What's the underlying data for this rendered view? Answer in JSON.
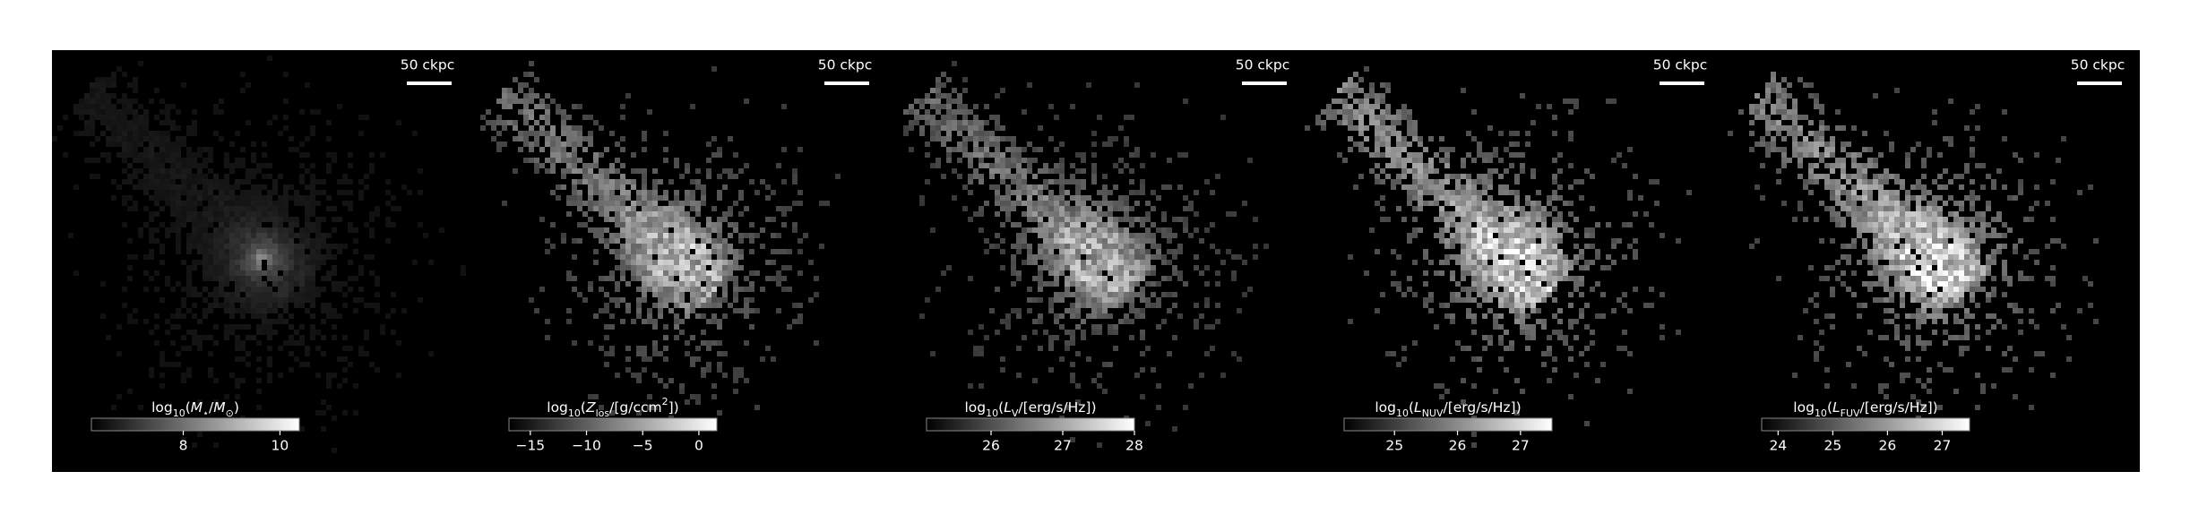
{
  "chart_data": [
    {
      "type": "image",
      "scalebar": "50 ckpc",
      "colorbar": {
        "label": [
          "log",
          {
            "t": "10",
            "s": "sub"
          },
          "(",
          {
            "t": "M",
            "s": "it"
          },
          {
            "t": "⋆",
            "s": "sub"
          },
          "/",
          {
            "t": "M",
            "s": "it"
          },
          {
            "t": "⊙",
            "s": "sub"
          },
          ")"
        ],
        "clim": [
          6.1,
          10.4
        ],
        "ticks": [
          8,
          10
        ]
      }
    },
    {
      "type": "image",
      "scalebar": "50 ckpc",
      "colorbar": {
        "label": [
          "log",
          {
            "t": "10",
            "s": "sub"
          },
          "(",
          {
            "t": "Z",
            "s": "it"
          },
          {
            "t": "los",
            "s": "sub"
          },
          "/[g/ccm",
          {
            "t": "2",
            "s": "sup"
          },
          "])"
        ],
        "clim": [
          -16.9,
          1.6
        ],
        "ticks": [
          {
            "value": -15,
            "label": "−15"
          },
          {
            "value": -10,
            "label": "−10"
          },
          {
            "value": -5,
            "label": "−5"
          },
          0
        ]
      }
    },
    {
      "type": "image",
      "scalebar": "50 ckpc",
      "colorbar": {
        "label": [
          "log",
          {
            "t": "10",
            "s": "sub"
          },
          "(",
          {
            "t": "L",
            "s": "it"
          },
          {
            "t": "V",
            "s": "sub"
          },
          "/[erg/s/Hz])"
        ],
        "clim": [
          25.1,
          28
        ],
        "ticks": [
          26,
          27,
          28
        ]
      }
    },
    {
      "type": "image",
      "scalebar": "50 ckpc",
      "colorbar": {
        "label": [
          "log",
          {
            "t": "10",
            "s": "sub"
          },
          "(",
          {
            "t": "L",
            "s": "it"
          },
          {
            "t": "NUV",
            "s": "sub"
          },
          "/[erg/s/Hz])"
        ],
        "clim": [
          24.2,
          27.5
        ],
        "ticks": [
          25,
          26,
          27
        ]
      }
    },
    {
      "type": "image",
      "scalebar": "50 ckpc",
      "colorbar": {
        "label": [
          "log",
          {
            "t": "10",
            "s": "sub"
          },
          "(",
          {
            "t": "L",
            "s": "it"
          },
          {
            "t": "FUV",
            "s": "sub"
          },
          "/[erg/s/Hz])"
        ],
        "clim": [
          23.7,
          27.5
        ],
        "ticks": [
          24,
          25,
          26,
          27
        ]
      }
    }
  ]
}
